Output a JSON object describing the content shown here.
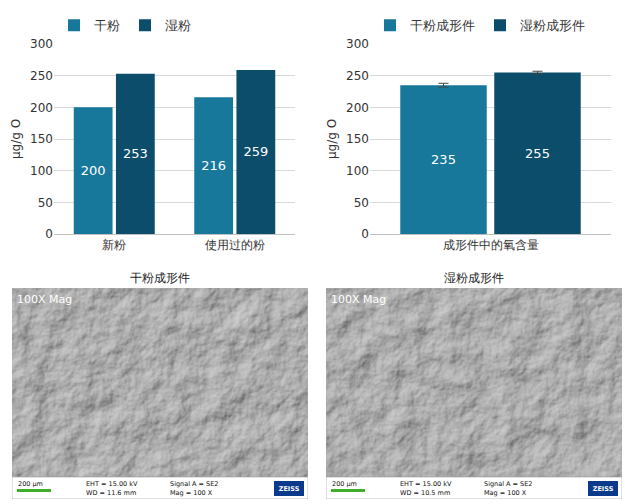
{
  "chart_data": [
    {
      "type": "bar",
      "categories": [
        "新粉",
        "使用过的粉"
      ],
      "series": [
        {
          "name": "干粉",
          "color": "#17789b",
          "values": [
            200,
            216
          ]
        },
        {
          "name": "湿粉",
          "color": "#0b4d6b",
          "values": [
            253,
            259
          ]
        }
      ],
      "y_label": "μg/g O",
      "ylim": [
        0,
        300
      ],
      "yticks": [
        0,
        50,
        100,
        150,
        200,
        250,
        300
      ],
      "grid": true,
      "data_labels": true,
      "legend": "top left"
    },
    {
      "type": "bar",
      "categories": [
        "成形件中的氧含量"
      ],
      "series": [
        {
          "name": "干粉成形件",
          "color": "#17789b",
          "values": [
            235
          ],
          "errors": [
            3
          ]
        },
        {
          "name": "湿粉成形件",
          "color": "#0b4d6b",
          "values": [
            255
          ],
          "errors": [
            2
          ]
        }
      ],
      "y_label": "μg/g O",
      "ylim": [
        0,
        300
      ],
      "yticks": [
        0,
        50,
        100,
        150,
        200,
        250,
        300
      ],
      "grid": true,
      "data_labels": true,
      "legend": "top left"
    }
  ],
  "images": [
    {
      "title": "干粉成形件",
      "overlay": "100X Mag",
      "scale_bar": "200 µm",
      "info": [
        "EHT = 15.00 kV",
        "WD = 11.6 mm",
        "Signal A = SE2",
        "Mag = 100 X"
      ],
      "logo": "ZEISS"
    },
    {
      "title": "湿粉成形件",
      "overlay": "100X Mag",
      "scale_bar": "200 µm",
      "info": [
        "EHT = 15.00 kV",
        "WD = 10.5 mm",
        "Signal A = SE2",
        "Mag = 100 X"
      ],
      "logo": "ZEISS"
    }
  ]
}
